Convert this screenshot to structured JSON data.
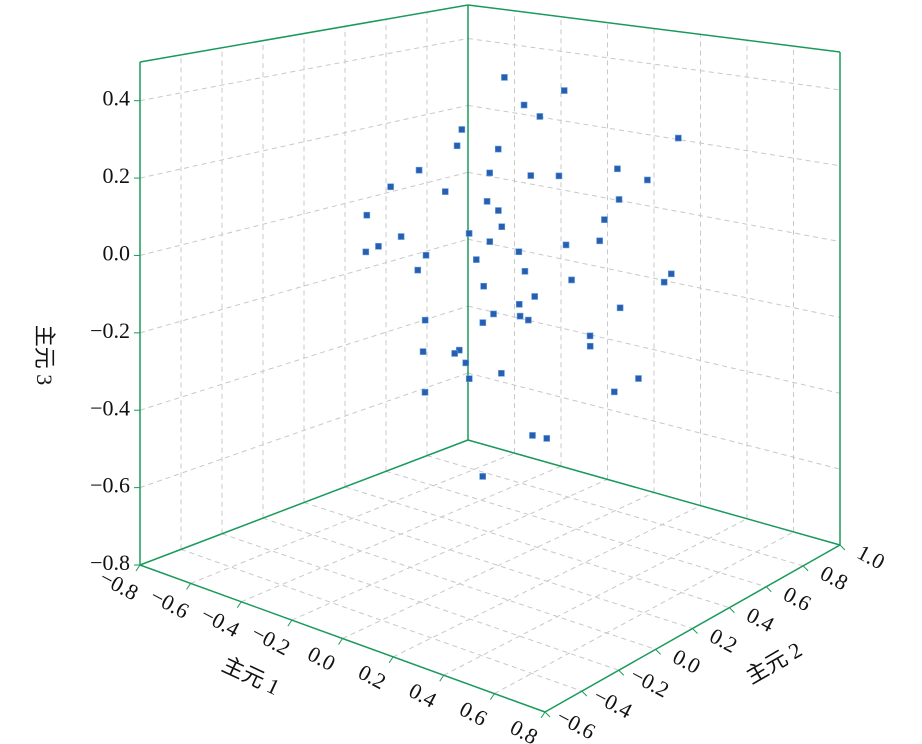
{
  "chart_data": {
    "type": "scatter3d",
    "x_label": "主元 1",
    "y_label": "主元 2",
    "z_label": "主元 3",
    "xlim": [
      -0.8,
      0.8
    ],
    "ylim": [
      -0.6,
      1.0
    ],
    "zlim": [
      -0.8,
      0.5
    ],
    "xticks": [
      {
        "value": -0.8,
        "label": "−0.8"
      },
      {
        "value": -0.6,
        "label": "−0.6"
      },
      {
        "value": -0.4,
        "label": "−0.4"
      },
      {
        "value": -0.2,
        "label": "−0.2"
      },
      {
        "value": 0,
        "label": "0.0"
      },
      0.2,
      0.4,
      0.6,
      0.8
    ],
    "yticks": [
      {
        "value": -0.6,
        "label": "−0.6"
      },
      {
        "value": -0.4,
        "label": "−0.4"
      },
      {
        "value": -0.2,
        "label": "−0.2"
      },
      {
        "value": 0,
        "label": "0.0"
      },
      0.2,
      0.4,
      0.6,
      0.8,
      {
        "value": 1.0,
        "label": "1.0"
      }
    ],
    "zticks": [
      {
        "value": -0.8,
        "label": "−0.8"
      },
      {
        "value": -0.6,
        "label": "−0.6"
      },
      {
        "value": -0.4,
        "label": "−0.4"
      },
      {
        "value": -0.2,
        "label": "−0.2"
      },
      {
        "value": 0,
        "label": "0.0"
      },
      0.2,
      0.4
    ],
    "grid": true,
    "axis_color": "#1a9a5a",
    "series": [
      {
        "color": "#2a5db0",
        "x": [
          0.02,
          -0.05,
          0.1,
          -0.12,
          0.05,
          0.0,
          -0.08,
          0.15,
          -0.2,
          0.08,
          0.03,
          -0.03,
          0.12,
          -0.15,
          0.06,
          -0.1,
          0.2,
          -0.25,
          0.18,
          -0.02,
          0.25,
          -0.3,
          0.3,
          -0.18,
          0.1,
          0.04,
          -0.06,
          0.14,
          -0.22,
          0.22,
          -0.35,
          0.35,
          -0.4,
          0.05,
          -0.12,
          0.28,
          -0.28,
          0.4,
          -0.05,
          0.16,
          -0.45,
          0.45,
          0.0,
          -0.32,
          0.33,
          -0.15,
          0.12,
          0.08,
          -0.26,
          0.26,
          -0.5,
          0.5,
          0.07,
          -0.09,
          0.19,
          -0.19,
          0.11,
          -0.38,
          0.38,
          0.02
        ],
        "y": [
          0.1,
          0.15,
          0.05,
          0.2,
          0.25,
          0.0,
          0.3,
          0.12,
          0.08,
          -0.05,
          0.35,
          0.18,
          0.4,
          0.22,
          -0.1,
          0.28,
          0.5,
          0.1,
          0.45,
          -0.15,
          0.2,
          0.3,
          0.6,
          0.05,
          0.55,
          0.15,
          0.38,
          0.65,
          -0.2,
          0.1,
          0.42,
          0.7,
          0.2,
          -0.25,
          0.48,
          0.75,
          0.0,
          0.3,
          0.6,
          0.25,
          0.35,
          0.5,
          0.12,
          0.8,
          -0.05,
          0.2,
          0.68,
          0.02,
          0.55,
          0.4,
          0.15,
          0.3,
          0.25,
          -0.3,
          0.58,
          0.45,
          0.08,
          0.62,
          0.1,
          0.33
        ],
        "z": [
          -0.05,
          0.0,
          -0.1,
          0.05,
          -0.15,
          -0.2,
          0.1,
          -0.08,
          0.0,
          -0.25,
          -0.12,
          0.15,
          0.02,
          -0.3,
          -0.18,
          0.2,
          0.08,
          -0.05,
          -0.22,
          -0.1,
          0.25,
          0.12,
          0.18,
          -0.35,
          -0.28,
          0.3,
          -0.02,
          0.1,
          0.05,
          -0.4,
          0.22,
          0.28,
          0.0,
          -0.15,
          0.35,
          -0.1,
          0.18,
          -0.3,
          0.38,
          -0.45,
          0.15,
          -0.05,
          -0.55,
          0.25,
          0.3,
          0.32,
          -0.2,
          -0.12,
          0.4,
          0.05,
          0.05,
          -0.25,
          -0.03,
          0.1,
          0.2,
          -0.38,
          0.12,
          -0.08,
          0.02,
          -0.18
        ]
      }
    ]
  }
}
